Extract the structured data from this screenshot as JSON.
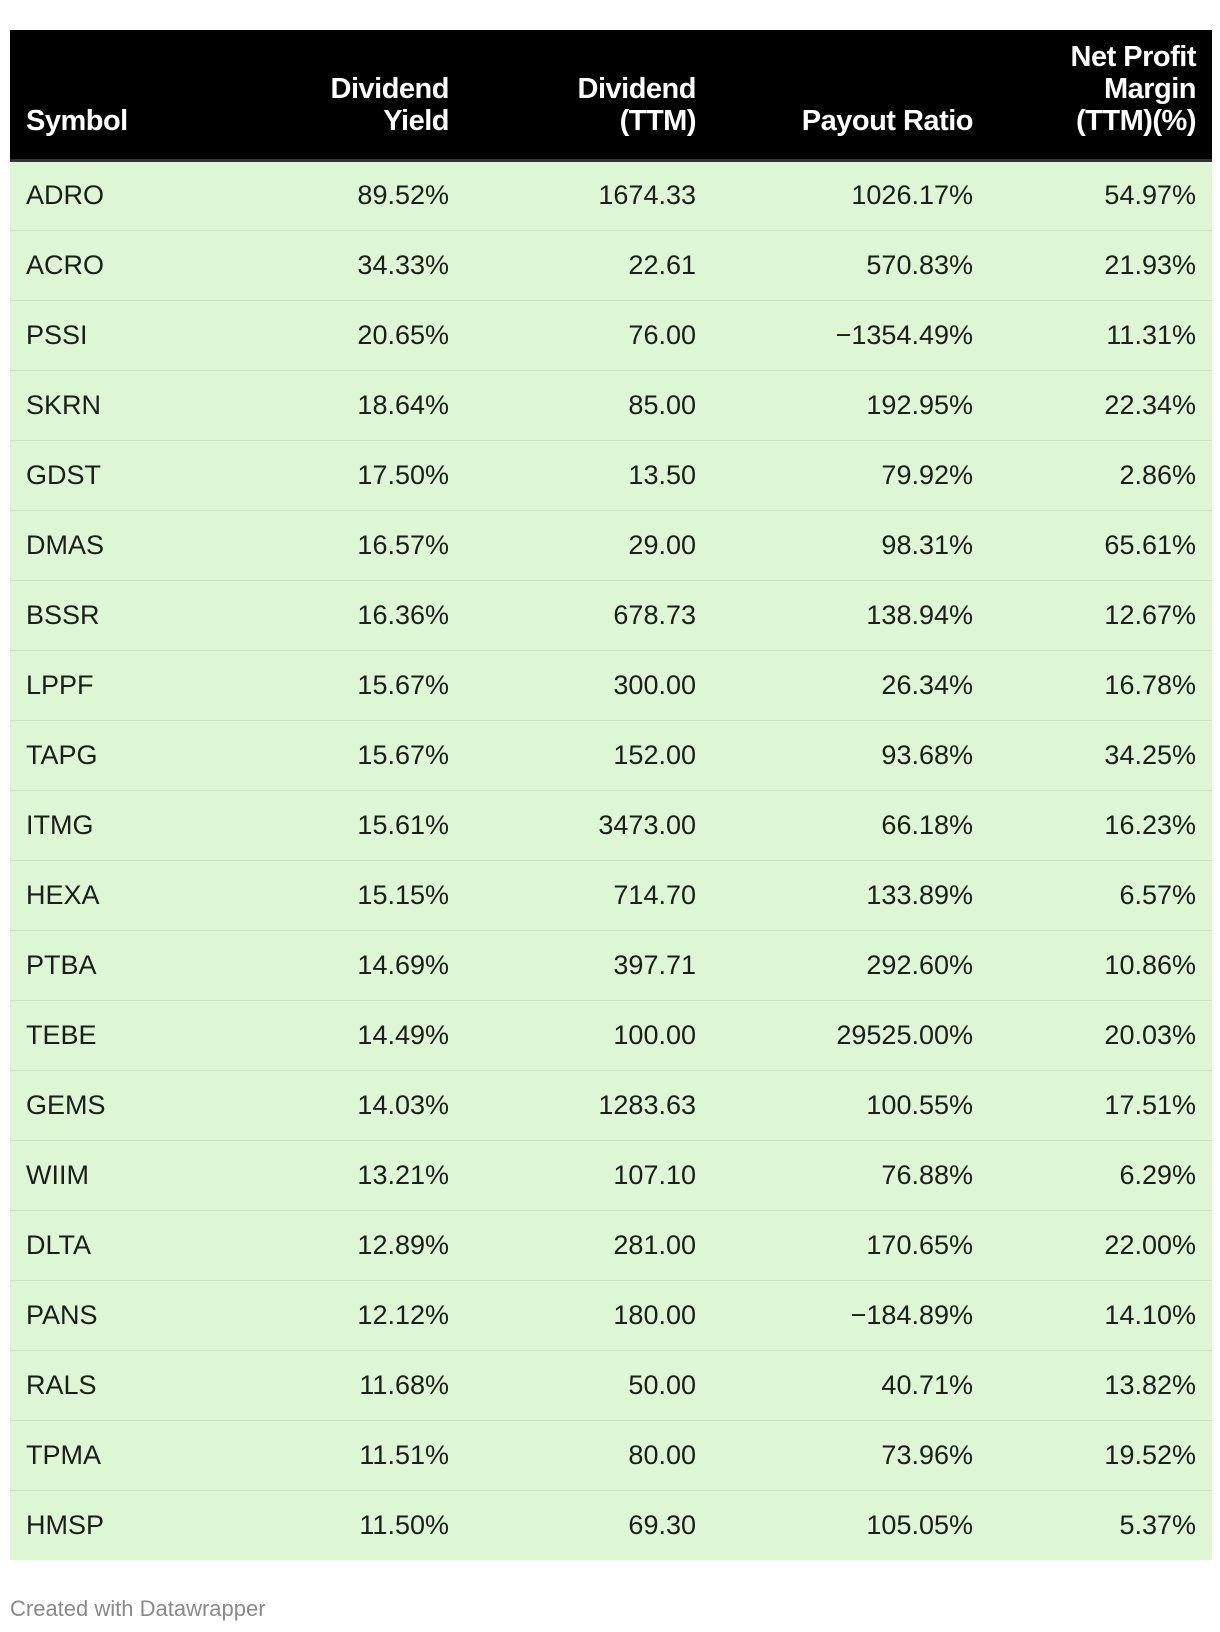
{
  "table": {
    "headers": [
      {
        "lines": [
          "Symbol"
        ]
      },
      {
        "lines": [
          "Dividend",
          "Yield"
        ]
      },
      {
        "lines": [
          "Dividend",
          "(TTM)"
        ]
      },
      {
        "lines": [
          "Payout Ratio"
        ]
      },
      {
        "lines": [
          "Net Profit",
          "Margin",
          "(TTM)(%)"
        ]
      }
    ],
    "rows": [
      [
        "ADRO",
        "89.52%",
        "1674.33",
        "1026.17%",
        "54.97%"
      ],
      [
        "ACRO",
        "34.33%",
        "22.61",
        "570.83%",
        "21.93%"
      ],
      [
        "PSSI",
        "20.65%",
        "76.00",
        "−1354.49%",
        "11.31%"
      ],
      [
        "SKRN",
        "18.64%",
        "85.00",
        "192.95%",
        "22.34%"
      ],
      [
        "GDST",
        "17.50%",
        "13.50",
        "79.92%",
        "2.86%"
      ],
      [
        "DMAS",
        "16.57%",
        "29.00",
        "98.31%",
        "65.61%"
      ],
      [
        "BSSR",
        "16.36%",
        "678.73",
        "138.94%",
        "12.67%"
      ],
      [
        "LPPF",
        "15.67%",
        "300.00",
        "26.34%",
        "16.78%"
      ],
      [
        "TAPG",
        "15.67%",
        "152.00",
        "93.68%",
        "34.25%"
      ],
      [
        "ITMG",
        "15.61%",
        "3473.00",
        "66.18%",
        "16.23%"
      ],
      [
        "HEXA",
        "15.15%",
        "714.70",
        "133.89%",
        "6.57%"
      ],
      [
        "PTBA",
        "14.69%",
        "397.71",
        "292.60%",
        "10.86%"
      ],
      [
        "TEBE",
        "14.49%",
        "100.00",
        "29525.00%",
        "20.03%"
      ],
      [
        "GEMS",
        "14.03%",
        "1283.63",
        "100.55%",
        "17.51%"
      ],
      [
        "WIIM",
        "13.21%",
        "107.10",
        "76.88%",
        "6.29%"
      ],
      [
        "DLTA",
        "12.89%",
        "281.00",
        "170.65%",
        "22.00%"
      ],
      [
        "PANS",
        "12.12%",
        "180.00",
        "−184.89%",
        "14.10%"
      ],
      [
        "RALS",
        "11.68%",
        "50.00",
        "40.71%",
        "13.82%"
      ],
      [
        "TPMA",
        "11.51%",
        "80.00",
        "73.96%",
        "19.52%"
      ],
      [
        "HMSP",
        "11.50%",
        "69.30",
        "105.05%",
        "5.37%"
      ]
    ]
  },
  "colors": {
    "header_bg": "#000000",
    "header_text": "#ffffff",
    "row_bg": "#ddf6d3",
    "row_divider": "#c9e6bd",
    "credit_text": "#8a8a8a"
  },
  "footer": {
    "credit": "Created with Datawrapper"
  }
}
